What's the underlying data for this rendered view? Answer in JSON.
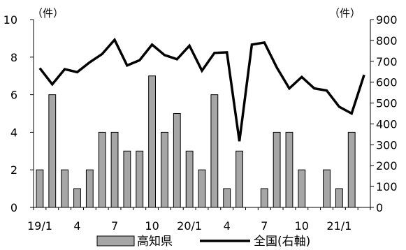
{
  "chart_data": {
    "type": "bar+line",
    "categories": [
      "19/1",
      "19/2",
      "19/3",
      "19/4",
      "19/5",
      "19/6",
      "19/7",
      "19/8",
      "19/9",
      "19/10",
      "19/11",
      "19/12",
      "20/1",
      "20/2",
      "20/3",
      "20/4",
      "20/5",
      "20/6",
      "20/7",
      "20/8",
      "20/9",
      "20/10",
      "20/11",
      "20/12",
      "21/1",
      "21/2",
      "21/3"
    ],
    "x_tick_labels": [
      {
        "index": 0,
        "label": "19/1"
      },
      {
        "index": 3,
        "label": "4"
      },
      {
        "index": 6,
        "label": "7"
      },
      {
        "index": 9,
        "label": "10"
      },
      {
        "index": 12,
        "label": "20/1"
      },
      {
        "index": 15,
        "label": "4"
      },
      {
        "index": 18,
        "label": "7"
      },
      {
        "index": 21,
        "label": "10"
      },
      {
        "index": 24,
        "label": "21/1"
      }
    ],
    "series": [
      {
        "name": "高知県",
        "type": "bar",
        "axis": "left",
        "color": "#a6a6a6",
        "values": [
          2,
          6,
          2,
          1,
          2,
          4,
          4,
          3,
          3,
          7,
          4,
          5,
          3,
          2,
          6,
          1,
          3,
          0,
          1,
          4,
          4,
          2,
          0,
          2,
          1,
          4,
          null
        ]
      },
      {
        "name": "全国(右軸)",
        "type": "line",
        "axis": "right",
        "color": "#000000",
        "values": [
          667,
          590,
          662,
          648,
          695,
          735,
          803,
          680,
          705,
          780,
          730,
          710,
          775,
          655,
          740,
          743,
          317,
          780,
          790,
          670,
          570,
          625,
          570,
          560,
          482,
          450,
          635
        ]
      }
    ],
    "left_axis": {
      "unit": "（件）",
      "min": 0,
      "max": 10,
      "ticks": [
        0,
        2,
        4,
        6,
        8,
        10
      ]
    },
    "right_axis": {
      "unit": "（件）",
      "min": 0,
      "max": 900,
      "ticks": [
        0,
        100,
        200,
        300,
        400,
        500,
        600,
        700,
        800,
        900
      ]
    },
    "legend": {
      "position": "bottom",
      "entries": [
        "高知県",
        "全国(右軸)"
      ]
    },
    "grid": false
  }
}
